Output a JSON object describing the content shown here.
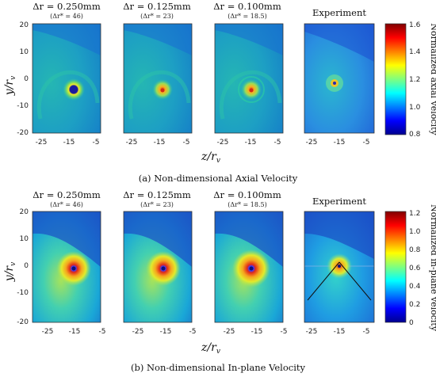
{
  "figure": {
    "rows": [
      {
        "id": "axial",
        "caption": "(a) Non-dimensional Axial Velocity",
        "colorbar_label": "Normalized axial velocity",
        "colorbar_ticks": [
          "1.6",
          "1.4",
          "1.2",
          "1.0",
          "0.8"
        ],
        "panels": [
          {
            "title": "Δr = 0.250mm",
            "subtitle": "(Δr* = 46)"
          },
          {
            "title": "Δr = 0.125mm",
            "subtitle": "(Δr* = 23)"
          },
          {
            "title": "Δr = 0.100mm",
            "subtitle": "(Δr* = 18.5)"
          },
          {
            "title": "Experiment",
            "subtitle": ""
          }
        ]
      },
      {
        "id": "inplane",
        "caption": "(b) Non-dimensional In-plane Velocity",
        "colorbar_label": "Normalized in-plane velocity",
        "colorbar_ticks": [
          "1.2",
          "1.0",
          "0.8",
          "0.6",
          "0.4",
          "0.2",
          "0"
        ],
        "panels": [
          {
            "title": "Δr = 0.250mm",
            "subtitle": "(Δr* = 46)"
          },
          {
            "title": "Δr = 0.125mm",
            "subtitle": "(Δr* = 23)"
          },
          {
            "title": "Δr = 0.100mm",
            "subtitle": "(Δr* = 18.5)"
          },
          {
            "title": "Experiment",
            "subtitle": ""
          }
        ]
      }
    ],
    "y_axis_label": "y/r",
    "y_axis_sub": "v",
    "x_axis_label": "z/r",
    "x_axis_sub": "v",
    "y_ticks": [
      "20",
      "10",
      "0",
      "-10",
      "-20"
    ],
    "x_ticks": [
      "-25",
      "-15",
      "-5"
    ]
  }
}
